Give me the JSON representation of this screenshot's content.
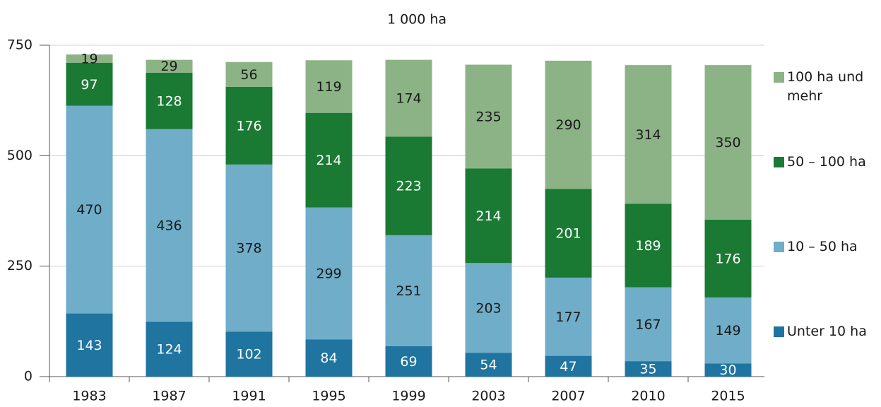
{
  "chart_data": {
    "type": "stacked_bar",
    "title": "1 000 ha",
    "categories": [
      "1983",
      "1987",
      "1991",
      "1995",
      "1999",
      "2003",
      "2007",
      "2010",
      "2015"
    ],
    "series": [
      {
        "name": "Unter 10 ha",
        "color": "#1f74a0",
        "label_color": "#ffffff",
        "values": [
          143,
          124,
          102,
          84,
          69,
          54,
          47,
          35,
          30
        ]
      },
      {
        "name": "10 – 50 ha",
        "color": "#6fadc8",
        "label_color": "#1a1a1a",
        "values": [
          470,
          436,
          378,
          299,
          251,
          203,
          177,
          167,
          149
        ]
      },
      {
        "name": "50 – 100 ha",
        "color": "#1a7a33",
        "label_color": "#ffffff",
        "values": [
          97,
          128,
          176,
          214,
          223,
          214,
          201,
          189,
          176
        ]
      },
      {
        "name": "100 ha und mehr",
        "color": "#8cb386",
        "label_color": "#1a1a1a",
        "values": [
          19,
          29,
          56,
          119,
          174,
          235,
          290,
          314,
          350
        ]
      }
    ],
    "ylim": [
      0,
      750
    ],
    "yticks": [
      0,
      250,
      500,
      750
    ],
    "grid": true
  }
}
